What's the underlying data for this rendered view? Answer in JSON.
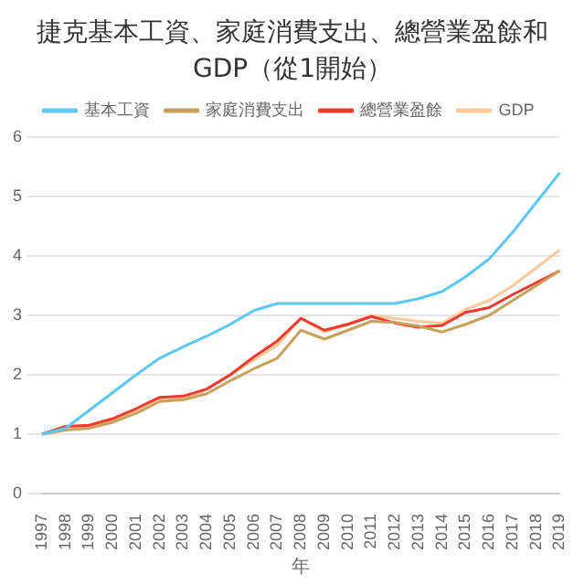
{
  "chart_data": {
    "type": "line",
    "title": "捷克基本工資、家庭消費支出、總營業盈餘和GDP（從1開始）",
    "xlabel": "年",
    "categories": [
      "1997",
      "1998",
      "1999",
      "2000",
      "2001",
      "2002",
      "2003",
      "2004",
      "2005",
      "2006",
      "2007",
      "2008",
      "2009",
      "2010",
      "2011",
      "2012",
      "2013",
      "2014",
      "2015",
      "2016",
      "2017",
      "2018",
      "2019"
    ],
    "series": [
      {
        "name": "基本工資",
        "color": "#5bc8f5",
        "values": [
          1.0,
          1.1,
          1.4,
          1.7,
          2.0,
          2.28,
          2.47,
          2.65,
          2.85,
          3.08,
          3.2,
          3.2,
          3.2,
          3.2,
          3.2,
          3.2,
          3.28,
          3.4,
          3.65,
          3.95,
          4.4,
          4.9,
          5.4
        ]
      },
      {
        "name": "家庭消費支出",
        "color": "#c9a15a",
        "values": [
          1.0,
          1.07,
          1.1,
          1.2,
          1.35,
          1.55,
          1.58,
          1.68,
          1.9,
          2.1,
          2.28,
          2.75,
          2.6,
          2.75,
          2.9,
          2.88,
          2.82,
          2.72,
          2.85,
          3.0,
          3.25,
          3.5,
          3.75
        ]
      },
      {
        "name": "總營業盈餘",
        "color": "#f5372d",
        "values": [
          1.0,
          1.13,
          1.15,
          1.26,
          1.43,
          1.62,
          1.64,
          1.76,
          2.0,
          2.3,
          2.57,
          2.95,
          2.75,
          2.85,
          2.98,
          2.87,
          2.8,
          2.83,
          3.05,
          3.13,
          3.35,
          3.55,
          3.75
        ]
      },
      {
        "name": "GDP",
        "color": "#ffc99a",
        "values": [
          1.0,
          1.1,
          1.13,
          1.22,
          1.38,
          1.58,
          1.6,
          1.75,
          2.0,
          2.25,
          2.5,
          2.95,
          2.72,
          2.85,
          3.0,
          2.95,
          2.9,
          2.87,
          3.1,
          3.25,
          3.5,
          3.8,
          4.1
        ]
      }
    ],
    "ylim": [
      0,
      6
    ],
    "yticks": [
      0,
      1,
      2,
      3,
      4,
      5,
      6
    ],
    "grid": "y",
    "legend": "top",
    "marker": "none"
  }
}
